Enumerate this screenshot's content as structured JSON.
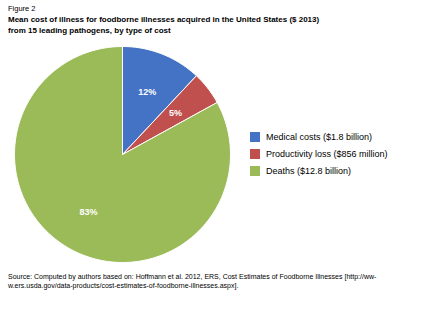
{
  "chart_data": {
    "type": "pie",
    "figure_label": "Figure 2",
    "title": "Mean cost of illness for foodborne illnesses acquired in the United States ($ 2013)\nfrom 15 leading pathogens, by type of cost",
    "caption": "Source: Computed by authors based on: Hoffmann et al. 2012, ERS, Cost Estimates of Foodborne Illnesses [http://ww-\nw.ers.usda.gov/data-products/cost-estimates-of-foodborne-illnesses.aspx].",
    "categories": [
      "Medical costs ($1.8 billion)",
      "Productivity loss ($856 million)",
      "Deaths ($12.8 billion)"
    ],
    "values": [
      12,
      5,
      83
    ],
    "value_labels": [
      "12%",
      "5%",
      "83%"
    ],
    "colors": [
      "#4472C4",
      "#C0504D",
      "#9BBB59"
    ],
    "data_labels": true,
    "legend": "right"
  }
}
